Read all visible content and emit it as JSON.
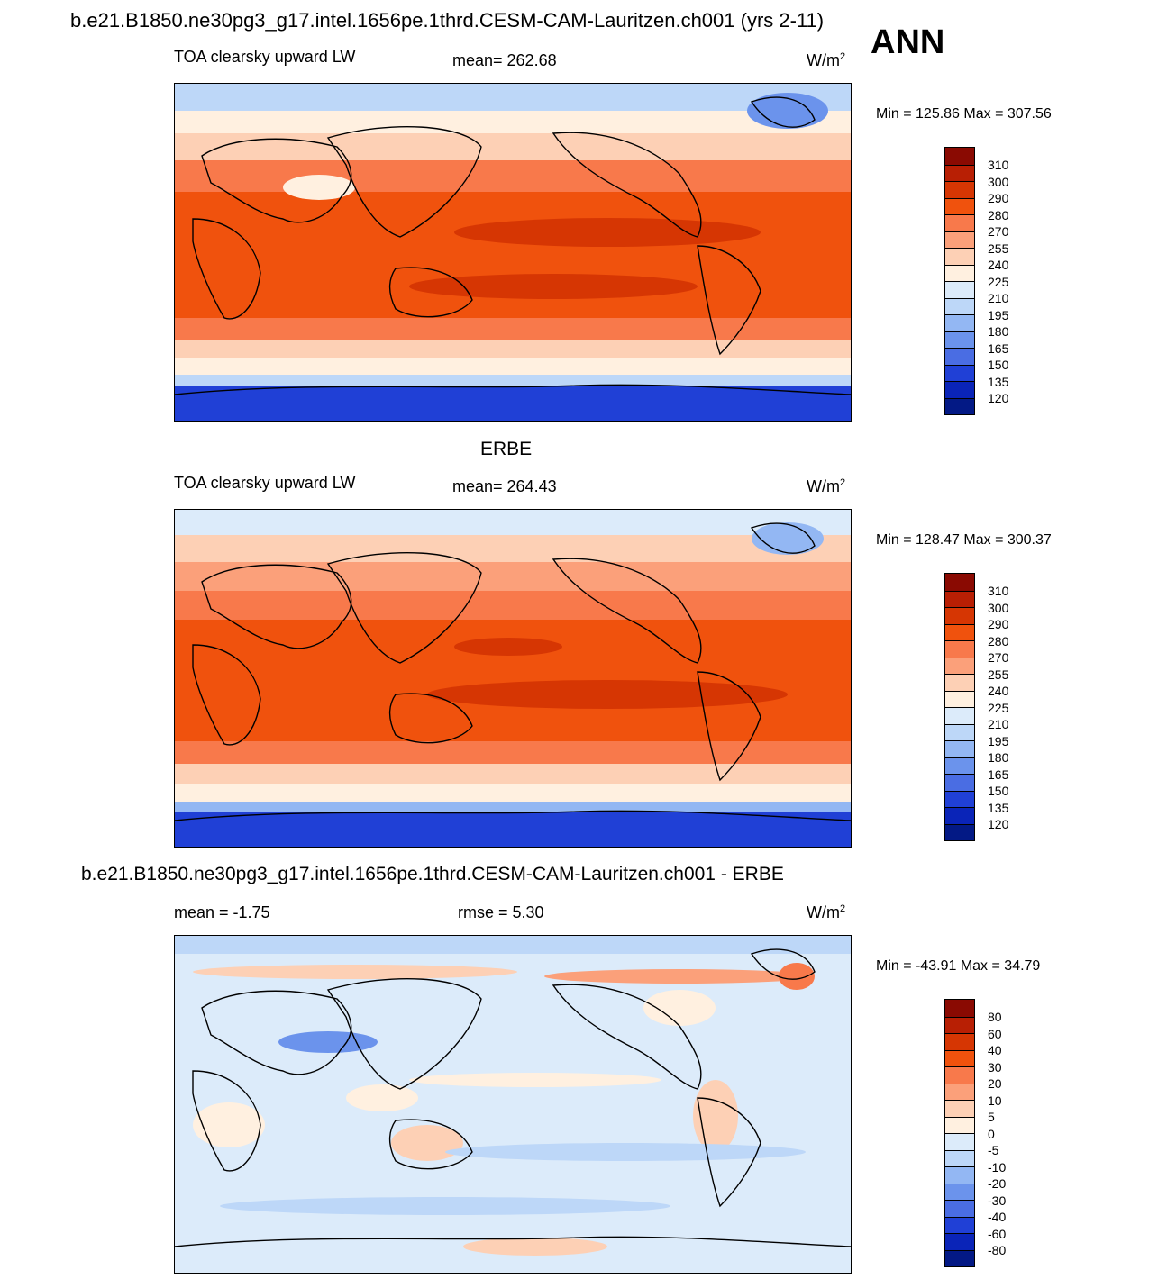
{
  "header": {
    "title": "b.e21.B1850.ne30pg3_g17.intel.1656pe.1thrd.CESM-CAM-Lauritzen.ch001 (yrs 2-11)",
    "season": "ANN"
  },
  "panels": [
    {
      "variable": "TOA clearsky upward LW",
      "mean": "mean= 262.68",
      "units": "W/m",
      "units_sup": "2",
      "minmax": "Min = 125.86 Max = 307.56",
      "colorbar": {
        "labels": [
          "310",
          "300",
          "290",
          "280",
          "270",
          "255",
          "240",
          "225",
          "210",
          "195",
          "180",
          "165",
          "150",
          "135",
          "120"
        ],
        "colors": [
          "#8a0a02",
          "#b81f04",
          "#d63603",
          "#f0520d",
          "#f8794b",
          "#fba07a",
          "#fdd0b5",
          "#fff0e0",
          "#dcebfa",
          "#bdd7f8",
          "#93b7f3",
          "#6b93ec",
          "#4a6de3",
          "#2040d6",
          "#0a24b8",
          "#031985"
        ]
      }
    },
    {
      "panel_title": "ERBE",
      "variable": "TOA clearsky upward LW",
      "mean": "mean= 264.43",
      "units": "W/m",
      "units_sup": "2",
      "minmax": "Min = 128.47 Max = 300.37",
      "colorbar": {
        "labels": [
          "310",
          "300",
          "290",
          "280",
          "270",
          "255",
          "240",
          "225",
          "210",
          "195",
          "180",
          "165",
          "150",
          "135",
          "120"
        ],
        "colors": [
          "#8a0a02",
          "#b81f04",
          "#d63603",
          "#f0520d",
          "#f8794b",
          "#fba07a",
          "#fdd0b5",
          "#fff0e0",
          "#dcebfa",
          "#bdd7f8",
          "#93b7f3",
          "#6b93ec",
          "#4a6de3",
          "#2040d6",
          "#0a24b8",
          "#031985"
        ]
      }
    },
    {
      "panel_title": "b.e21.B1850.ne30pg3_g17.intel.1656pe.1thrd.CESM-CAM-Lauritzen.ch001 - ERBE",
      "mean": "mean =  -1.75",
      "rmse": "rmse =   5.30",
      "units": "W/m",
      "units_sup": "2",
      "minmax": "Min = -43.91 Max =  34.79",
      "colorbar": {
        "labels": [
          "80",
          "60",
          "40",
          "30",
          "20",
          "10",
          "5",
          "0",
          "-5",
          "-10",
          "-20",
          "-30",
          "-40",
          "-60",
          "-80"
        ],
        "colors": [
          "#8a0a02",
          "#b81f04",
          "#d63603",
          "#f0520d",
          "#f8794b",
          "#fba07a",
          "#fdd0b5",
          "#fff0e0",
          "#dcebfa",
          "#bdd7f8",
          "#93b7f3",
          "#6b93ec",
          "#4a6de3",
          "#2040d6",
          "#0a24b8",
          "#031985"
        ]
      }
    }
  ]
}
